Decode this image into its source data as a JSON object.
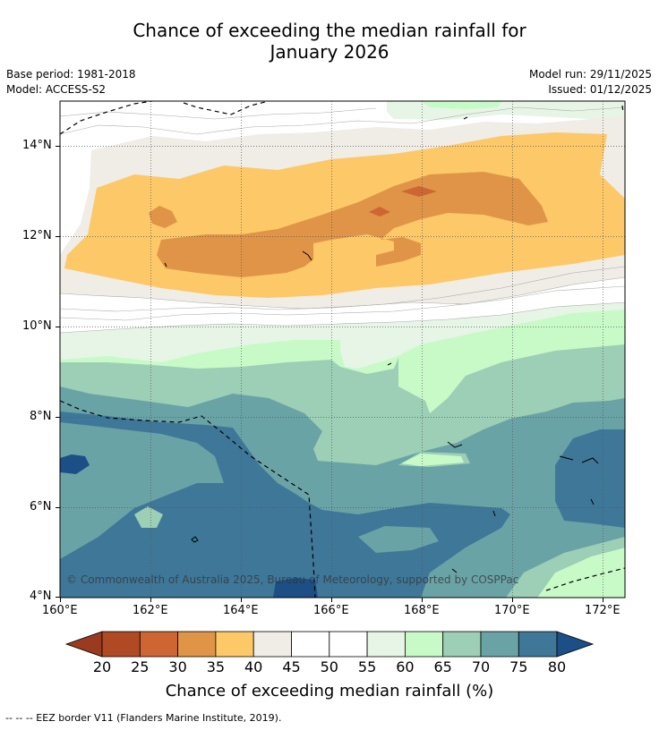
{
  "title": {
    "line1": "Chance of exceeding the median rainfall for",
    "line2": "January 2026"
  },
  "meta": {
    "base_period": "Base period: 1981-2018",
    "model": "Model: ACCESS-S2",
    "model_run": "Model run: 29/11/2025",
    "issued": "Issued: 01/12/2025"
  },
  "map": {
    "lon_ticks": [
      "160°E",
      "162°E",
      "164°E",
      "166°E",
      "168°E",
      "170°E",
      "172°E"
    ],
    "lat_ticks": [
      "14°N",
      "12°N",
      "10°N",
      "8°N",
      "6°N",
      "4°N"
    ],
    "copyright": "© Commonwealth of Australia 2025, Bureau of Meteorology, supported by COSPPac"
  },
  "colorbar": {
    "labels": [
      "20",
      "25",
      "30",
      "35",
      "40",
      "45",
      "50",
      "55",
      "60",
      "65",
      "70",
      "75",
      "80"
    ],
    "colors": {
      "under": "#9a3a1e",
      "c20_25": "#b04a24",
      "c25_30": "#cd6633",
      "c30_35": "#e09448",
      "c35_40": "#fdc867",
      "c40_45": "#f0ece6",
      "c45_50": "#ffffff",
      "c50_55": "#ffffff",
      "c55_60": "#e6f5e6",
      "c60_65": "#c8fac8",
      "c65_70": "#9ccfb6",
      "c70_75": "#6aa3a6",
      "c75_80": "#3f7799",
      "over": "#1c4f86"
    },
    "title": "Chance of exceeding median rainfall (%)"
  },
  "footnote": "--  --  -- EEZ border V11 (Flanders Marine Institute, 2019)."
}
